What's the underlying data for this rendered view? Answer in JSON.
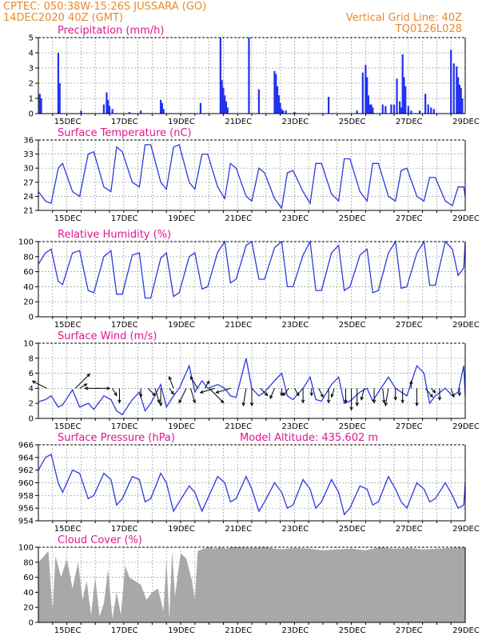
{
  "header": {
    "line1_left": "CPTEC:   050:38W-15:26S   JUSSARA (GO)",
    "line2_left": "14DEC2020  40Z (GMT)",
    "line1_right": "Vertical Grid Line: 40Z",
    "line2_right": "TQ0126L028"
  },
  "x_labels": [
    "15DEC",
    "17DEC",
    "19DEC",
    "21DEC",
    "23DEC",
    "25DEC",
    "27DEC",
    "29DEC"
  ],
  "chart_data": [
    {
      "type": "bar",
      "title": "Precipitation (mm/h)",
      "ylim": [
        0,
        5
      ],
      "yticks": [
        "0",
        "1",
        "2",
        "3",
        "4",
        "5"
      ],
      "x_range_days": [
        14.0,
        29.0
      ],
      "x": [
        14.05,
        14.1,
        14.7,
        14.75,
        15.5,
        16.3,
        16.4,
        16.45,
        16.5,
        16.6,
        17.2,
        17.6,
        18.3,
        18.35,
        18.4,
        19.7,
        20.4,
        20.45,
        20.5,
        20.55,
        20.6,
        20.65,
        21.4,
        21.75,
        22.3,
        22.35,
        22.4,
        22.45,
        22.5,
        22.55,
        22.6,
        22.7,
        23.0,
        24.2,
        25.2,
        25.4,
        25.5,
        25.55,
        25.6,
        25.65,
        25.7,
        25.75,
        26.1,
        26.2,
        26.4,
        26.5,
        26.6,
        26.7,
        26.75,
        26.8,
        26.85,
        26.9,
        27.0,
        27.1,
        27.4,
        27.6,
        27.7,
        27.8,
        27.9,
        28.5,
        28.6,
        28.7,
        28.75,
        28.8,
        28.85,
        28.9
      ],
      "values": [
        1.3,
        1.0,
        4.0,
        2.0,
        0.2,
        0.6,
        1.4,
        0.9,
        0.5,
        0.3,
        0.1,
        0.2,
        0.9,
        0.7,
        0.3,
        0.7,
        5.0,
        2.2,
        1.7,
        1.2,
        0.8,
        0.4,
        5.0,
        1.6,
        2.8,
        2.6,
        1.8,
        1.2,
        0.7,
        0.3,
        0.2,
        0.2,
        0.1,
        1.1,
        0.2,
        2.7,
        3.2,
        2.4,
        1.2,
        0.6,
        0.6,
        0.4,
        0.6,
        0.5,
        0.6,
        0.6,
        2.3,
        0.8,
        0.4,
        3.9,
        2.4,
        1.8,
        0.5,
        0.2,
        0.2,
        1.3,
        0.6,
        0.4,
        0.3,
        4.2,
        3.3,
        3.1,
        2.4,
        1.9,
        1.7,
        1.0
      ]
    },
    {
      "type": "line",
      "title": "Surface Temperature (nC)",
      "ylim": [
        21,
        36
      ],
      "yticks": [
        "21",
        "24",
        "27",
        "30",
        "33",
        "36"
      ],
      "x_range_days": [
        14.0,
        29.0
      ],
      "x": [
        14.0,
        14.25,
        14.45,
        14.7,
        14.85,
        15.2,
        15.45,
        15.75,
        15.95,
        16.3,
        16.55,
        16.75,
        16.95,
        17.3,
        17.55,
        17.75,
        17.95,
        18.3,
        18.5,
        18.75,
        18.95,
        19.3,
        19.5,
        19.75,
        19.95,
        20.3,
        20.55,
        20.75,
        20.95,
        21.3,
        21.5,
        21.75,
        21.95,
        22.3,
        22.55,
        22.75,
        22.95,
        23.3,
        23.55,
        23.75,
        23.95,
        24.3,
        24.55,
        24.75,
        24.95,
        25.3,
        25.55,
        25.75,
        25.95,
        26.3,
        26.55,
        26.75,
        26.95,
        27.3,
        27.55,
        27.75,
        27.95,
        28.3,
        28.55,
        28.75,
        28.95,
        29.0
      ],
      "values": [
        25,
        23,
        22.5,
        30,
        31,
        25,
        24,
        33,
        33.5,
        26,
        25,
        34.5,
        33.5,
        27,
        26,
        35,
        35,
        27,
        25.5,
        34.5,
        35,
        27,
        25.5,
        33,
        33,
        26,
        23.5,
        31,
        30,
        24,
        23,
        30,
        29,
        23.5,
        21.5,
        29,
        29.5,
        25,
        22.5,
        31,
        31,
        24.5,
        23,
        32,
        32,
        25,
        23,
        31,
        31,
        24,
        23,
        29.5,
        30,
        24,
        23,
        28,
        28,
        23,
        22,
        26,
        26,
        24
      ]
    },
    {
      "type": "line",
      "title": "Relative Humidity (%)",
      "ylim": [
        0,
        100
      ],
      "yticks": [
        "0",
        "20",
        "40",
        "60",
        "80",
        "100"
      ],
      "x_range_days": [
        14.0,
        29.0
      ],
      "x": [
        14.0,
        14.25,
        14.45,
        14.7,
        14.85,
        15.2,
        15.45,
        15.75,
        15.95,
        16.3,
        16.55,
        16.75,
        16.95,
        17.3,
        17.55,
        17.75,
        17.95,
        18.3,
        18.5,
        18.75,
        18.95,
        19.3,
        19.5,
        19.75,
        19.95,
        20.3,
        20.55,
        20.75,
        20.95,
        21.3,
        21.5,
        21.75,
        21.95,
        22.3,
        22.55,
        22.75,
        22.95,
        23.3,
        23.55,
        23.75,
        23.95,
        24.3,
        24.55,
        24.75,
        24.95,
        25.3,
        25.55,
        25.75,
        25.95,
        26.3,
        26.55,
        26.75,
        26.95,
        27.3,
        27.55,
        27.75,
        27.95,
        28.3,
        28.55,
        28.75,
        28.95,
        29.0
      ],
      "values": [
        70,
        85,
        90,
        47,
        43,
        85,
        88,
        35,
        32,
        80,
        88,
        30,
        30,
        82,
        85,
        25,
        25,
        78,
        85,
        27,
        32,
        80,
        85,
        37,
        40,
        86,
        100,
        45,
        50,
        95,
        100,
        50,
        50,
        92,
        100,
        40,
        40,
        82,
        100,
        35,
        35,
        85,
        95,
        35,
        40,
        82,
        90,
        32,
        35,
        85,
        100,
        38,
        40,
        85,
        100,
        42,
        42,
        100,
        90,
        55,
        65,
        100
      ]
    },
    {
      "type": "line",
      "title": "Surface Wind (m/s)",
      "ylim": [
        0,
        10
      ],
      "yticks": [
        "0",
        "2",
        "4",
        "6",
        "8",
        "10"
      ],
      "x_range_days": [
        14.0,
        29.0
      ],
      "x": [
        14.0,
        14.25,
        14.45,
        14.7,
        14.85,
        15.2,
        15.45,
        15.75,
        15.95,
        16.3,
        16.55,
        16.75,
        16.95,
        17.3,
        17.55,
        17.75,
        17.95,
        18.3,
        18.5,
        18.75,
        18.95,
        19.3,
        19.5,
        19.75,
        19.95,
        20.3,
        20.55,
        20.75,
        20.95,
        21.3,
        21.5,
        21.75,
        21.95,
        22.3,
        22.55,
        22.75,
        22.95,
        23.3,
        23.55,
        23.75,
        23.95,
        24.3,
        24.55,
        24.75,
        24.95,
        25.3,
        25.55,
        25.75,
        25.95,
        26.3,
        26.55,
        26.75,
        26.95,
        27.3,
        27.55,
        27.75,
        27.95,
        28.3,
        28.55,
        28.75,
        28.95,
        29.0
      ],
      "values": [
        2.2,
        2.5,
        3,
        1.5,
        1.8,
        3.8,
        1.5,
        2,
        1.2,
        3,
        2.5,
        1,
        0.5,
        2.5,
        3.5,
        1,
        2,
        4.5,
        1.5,
        3,
        4,
        7,
        3.5,
        5,
        4,
        4.5,
        4,
        3,
        2.8,
        8,
        4,
        3,
        3.5,
        5,
        6,
        3,
        2.5,
        4,
        5.5,
        2.5,
        2.3,
        4.5,
        5.5,
        2,
        2.3,
        3.5,
        4,
        2.3,
        3.5,
        5.5,
        4,
        3.5,
        3,
        7,
        6,
        2,
        3,
        4,
        3,
        3.5,
        7,
        3
      ]
    },
    {
      "type": "line",
      "title": "Surface Pressure (hPa)",
      "annotation": "Model Altitude: 435.602 m",
      "ylim": [
        954,
        966
      ],
      "yticks": [
        "954",
        "956",
        "958",
        "960",
        "962",
        "964",
        "966"
      ],
      "x_range_days": [
        14.0,
        29.0
      ],
      "x": [
        14.0,
        14.25,
        14.45,
        14.7,
        14.85,
        15.2,
        15.45,
        15.75,
        15.95,
        16.3,
        16.55,
        16.75,
        16.95,
        17.3,
        17.55,
        17.75,
        17.95,
        18.3,
        18.5,
        18.75,
        18.95,
        19.3,
        19.5,
        19.75,
        19.95,
        20.3,
        20.55,
        20.75,
        20.95,
        21.3,
        21.5,
        21.75,
        21.95,
        22.3,
        22.55,
        22.75,
        22.95,
        23.3,
        23.55,
        23.75,
        23.95,
        24.3,
        24.55,
        24.75,
        24.95,
        25.3,
        25.55,
        25.75,
        25.95,
        26.3,
        26.55,
        26.75,
        26.95,
        27.3,
        27.55,
        27.75,
        27.95,
        28.3,
        28.55,
        28.75,
        28.95,
        29.0
      ],
      "values": [
        962,
        964,
        964.5,
        960,
        958.5,
        962,
        961.5,
        957.5,
        958,
        961.5,
        960.5,
        956.5,
        957.5,
        961,
        960.5,
        957,
        957.5,
        961.5,
        960,
        955.5,
        957,
        959.5,
        958.5,
        955.5,
        957.5,
        961,
        960,
        957,
        957.5,
        961,
        959,
        955.5,
        957,
        960,
        958.5,
        956,
        956.5,
        960.5,
        959,
        956,
        957,
        960.5,
        958.5,
        955,
        956,
        959.5,
        959,
        956.5,
        957,
        961,
        959,
        957,
        956,
        960,
        959,
        957,
        957.5,
        960,
        958,
        956,
        956.5,
        960
      ]
    },
    {
      "type": "area",
      "title": "Cloud Cover (%)",
      "ylim": [
        0,
        100
      ],
      "yticks": [
        "0",
        "20",
        "40",
        "60",
        "80",
        "100"
      ],
      "x_range_days": [
        14.0,
        29.0
      ],
      "x": [
        14.0,
        14.2,
        14.35,
        14.5,
        14.6,
        14.8,
        15.0,
        15.2,
        15.4,
        15.55,
        15.7,
        15.85,
        16.0,
        16.15,
        16.3,
        16.45,
        16.6,
        16.75,
        16.9,
        17.05,
        17.2,
        17.4,
        17.6,
        17.8,
        18.0,
        18.2,
        18.4,
        18.5,
        18.6,
        18.7,
        18.8,
        19.0,
        19.2,
        19.4,
        19.5,
        19.6,
        19.8,
        20.0,
        20.2,
        20.4,
        20.6,
        20.8,
        21.0,
        21.5,
        22.0,
        22.5,
        23.0,
        23.5,
        24.0,
        24.5,
        25.0,
        25.5,
        26.0,
        26.5,
        27.0,
        27.5,
        28.0,
        28.5,
        29.0
      ],
      "values": [
        80,
        88,
        95,
        15,
        88,
        60,
        85,
        45,
        80,
        30,
        55,
        10,
        60,
        8,
        25,
        70,
        5,
        40,
        10,
        75,
        60,
        55,
        50,
        30,
        40,
        45,
        15,
        85,
        5,
        95,
        35,
        92,
        85,
        55,
        30,
        95,
        98,
        100,
        98,
        100,
        98,
        100,
        100,
        99,
        100,
        97,
        99,
        98,
        96,
        97,
        98,
        96,
        100,
        98,
        99,
        97,
        98,
        99,
        100
      ]
    }
  ],
  "wind_vectors": {
    "x": [
      14.3,
      15.3,
      15.45,
      16.0,
      16.15,
      16.6,
      16.85,
      17.6,
      17.85,
      18.1,
      18.3,
      18.6,
      18.75,
      19.2,
      19.35,
      19.6,
      19.85,
      20.0,
      20.2,
      20.75,
      21.3,
      21.5,
      21.8,
      22.3,
      22.55,
      22.8,
      23.0,
      23.3,
      23.6,
      23.85,
      24.2,
      24.4,
      24.8,
      25.0,
      25.2,
      25.45,
      25.8,
      26.1,
      26.3,
      26.55,
      26.8,
      27.1,
      27.3,
      27.6,
      27.8,
      28.1,
      28.5,
      28.8
    ],
    "u": [
      -1,
      1,
      0.5,
      1,
      -1,
      0.3,
      0,
      0,
      0.5,
      0.3,
      0,
      0.3,
      -0.3,
      -0.5,
      0.3,
      -0.5,
      0.3,
      1,
      -1,
      -1,
      -0.2,
      0,
      0.5,
      -0.3,
      0,
      -0.4,
      0.3,
      0,
      0,
      0.3,
      0,
      -0.2,
      0,
      0,
      0,
      -0.2,
      0,
      0.1,
      -0.2,
      0,
      0,
      0,
      0,
      0.5,
      0.3,
      0,
      0.2,
      0
    ],
    "v": [
      0.5,
      1,
      0.3,
      0,
      0,
      -0.5,
      -1,
      -0.6,
      -0.5,
      -1,
      -1.2,
      -0.4,
      0.8,
      -1,
      -1,
      0.8,
      0.5,
      -1,
      -0.3,
      -0.3,
      -1.2,
      -1.2,
      -0.5,
      -0.7,
      -0.5,
      -0.5,
      -0.5,
      -1,
      -0.5,
      -0.6,
      -1,
      -0.6,
      -1,
      -1.5,
      -1.2,
      -0.8,
      -1,
      -1,
      -1.2,
      -0.8,
      -1,
      0.5,
      -1.2,
      -0.6,
      -0.3,
      -0.8,
      -0.6,
      -0.5
    ]
  }
}
